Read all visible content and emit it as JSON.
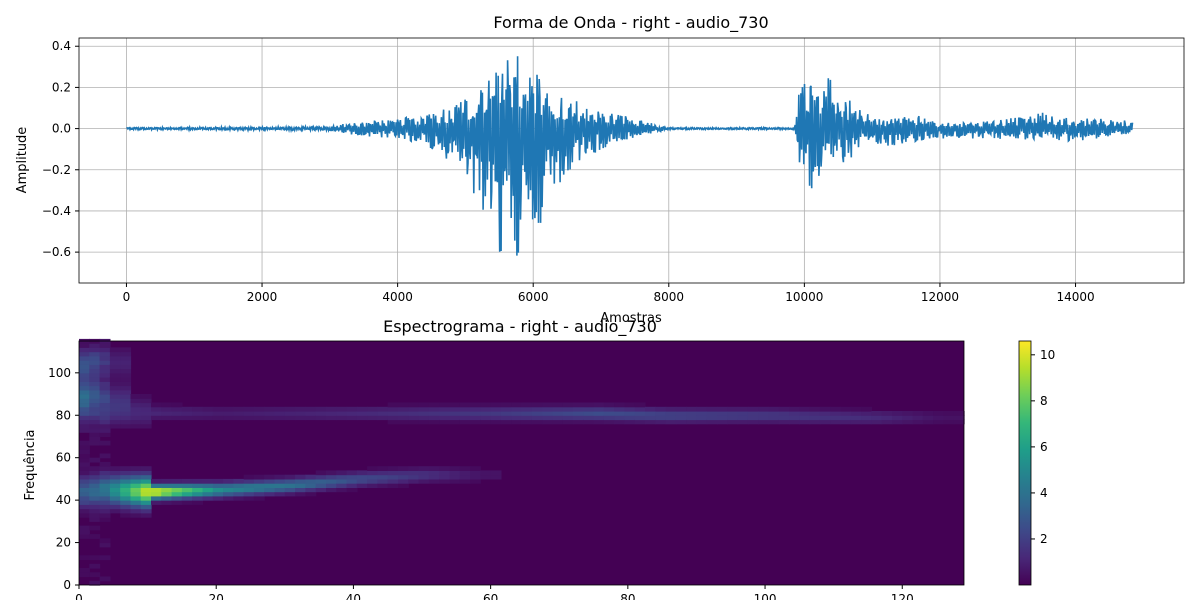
{
  "chart_data": [
    {
      "type": "line",
      "title": "Forma de Onda - right - audio_730",
      "xlabel": "Amostras",
      "ylabel": "Amplitude",
      "xlim": [
        -700,
        15600
      ],
      "ylim": [
        -0.75,
        0.44
      ],
      "x_ticks": [
        0,
        2000,
        4000,
        6000,
        8000,
        10000,
        12000,
        14000
      ],
      "y_ticks": [
        -0.6,
        -0.4,
        -0.2,
        0.0,
        0.2,
        0.4
      ],
      "y_tick_labels": [
        "−0.6",
        "−0.4",
        "−0.2",
        "0.0",
        "0.2",
        "0.4"
      ],
      "grid": true,
      "color": "#1f77b4",
      "n_samples": 14850,
      "envelope": {
        "x": [
          0,
          3000,
          3300,
          4000,
          4500,
          4900,
          5200,
          5400,
          5600,
          5800,
          6000,
          6300,
          6600,
          7000,
          7400,
          7700,
          8000,
          9850,
          9950,
          10100,
          10300,
          10600,
          10800,
          11000,
          11200,
          11500,
          12000,
          12500,
          13000,
          13500,
          14000,
          14500,
          14850
        ],
        "upper": [
          0.005,
          0.01,
          0.03,
          0.05,
          0.08,
          0.12,
          0.22,
          0.39,
          0.33,
          0.38,
          0.3,
          0.18,
          0.14,
          0.09,
          0.06,
          0.03,
          0.005,
          0.005,
          0.26,
          0.25,
          0.28,
          0.18,
          0.1,
          0.07,
          0.04,
          0.08,
          0.03,
          0.03,
          0.05,
          0.08,
          0.05,
          0.05,
          0.04
        ],
        "lower": [
          -0.005,
          -0.01,
          -0.03,
          -0.05,
          -0.1,
          -0.2,
          -0.42,
          -0.6,
          -0.7,
          -0.68,
          -0.55,
          -0.3,
          -0.18,
          -0.1,
          -0.05,
          -0.03,
          -0.005,
          -0.005,
          -0.22,
          -0.31,
          -0.25,
          -0.18,
          -0.1,
          -0.07,
          -0.1,
          -0.07,
          -0.05,
          -0.05,
          -0.05,
          -0.06,
          -0.06,
          -0.05,
          -0.02
        ]
      }
    },
    {
      "type": "heatmap",
      "title": "Espectrograma - right - audio_730",
      "xlabel": "",
      "ylabel": "Frequência",
      "xlim": [
        0,
        129
      ],
      "ylim": [
        0,
        115
      ],
      "x_ticks": [
        0,
        20,
        40,
        60,
        80,
        100,
        120
      ],
      "y_ticks": [
        0,
        20,
        40,
        60,
        80,
        100
      ],
      "colormap": "viridis",
      "colorbar": {
        "range": [
          0,
          10.6
        ],
        "ticks": [
          2,
          4,
          6,
          8,
          10
        ],
        "stops": [
          "#440154",
          "#482878",
          "#3e4989",
          "#31688e",
          "#26828e",
          "#1f9e89",
          "#35b779",
          "#6ece58",
          "#b5de2b",
          "#fde725"
        ]
      },
      "bands": [
        {
          "x": [
            0,
            3,
            10,
            20,
            30,
            40,
            50,
            58
          ],
          "y": [
            43,
            44,
            43,
            44,
            46,
            49,
            51,
            51
          ],
          "intensity": [
            3,
            4,
            10.5,
            5,
            4,
            2.5,
            1.5,
            0.6
          ]
        },
        {
          "x": [
            0,
            20,
            40,
            60,
            75,
            85,
            100,
            115,
            125
          ],
          "y": [
            81,
            80,
            80,
            80,
            80,
            79,
            79,
            78,
            78
          ],
          "intensity": [
            1.5,
            0.8,
            1.2,
            1.8,
            2.5,
            2.2,
            1.8,
            1.3,
            0.5
          ]
        },
        {
          "x": [
            0,
            2,
            4
          ],
          "y": [
            103,
            105,
            104
          ],
          "intensity": [
            2.5,
            2,
            1
          ]
        },
        {
          "x": [
            0,
            2,
            4
          ],
          "y": [
            89,
            90,
            88
          ],
          "intensity": [
            3,
            2,
            1
          ]
        }
      ]
    }
  ]
}
